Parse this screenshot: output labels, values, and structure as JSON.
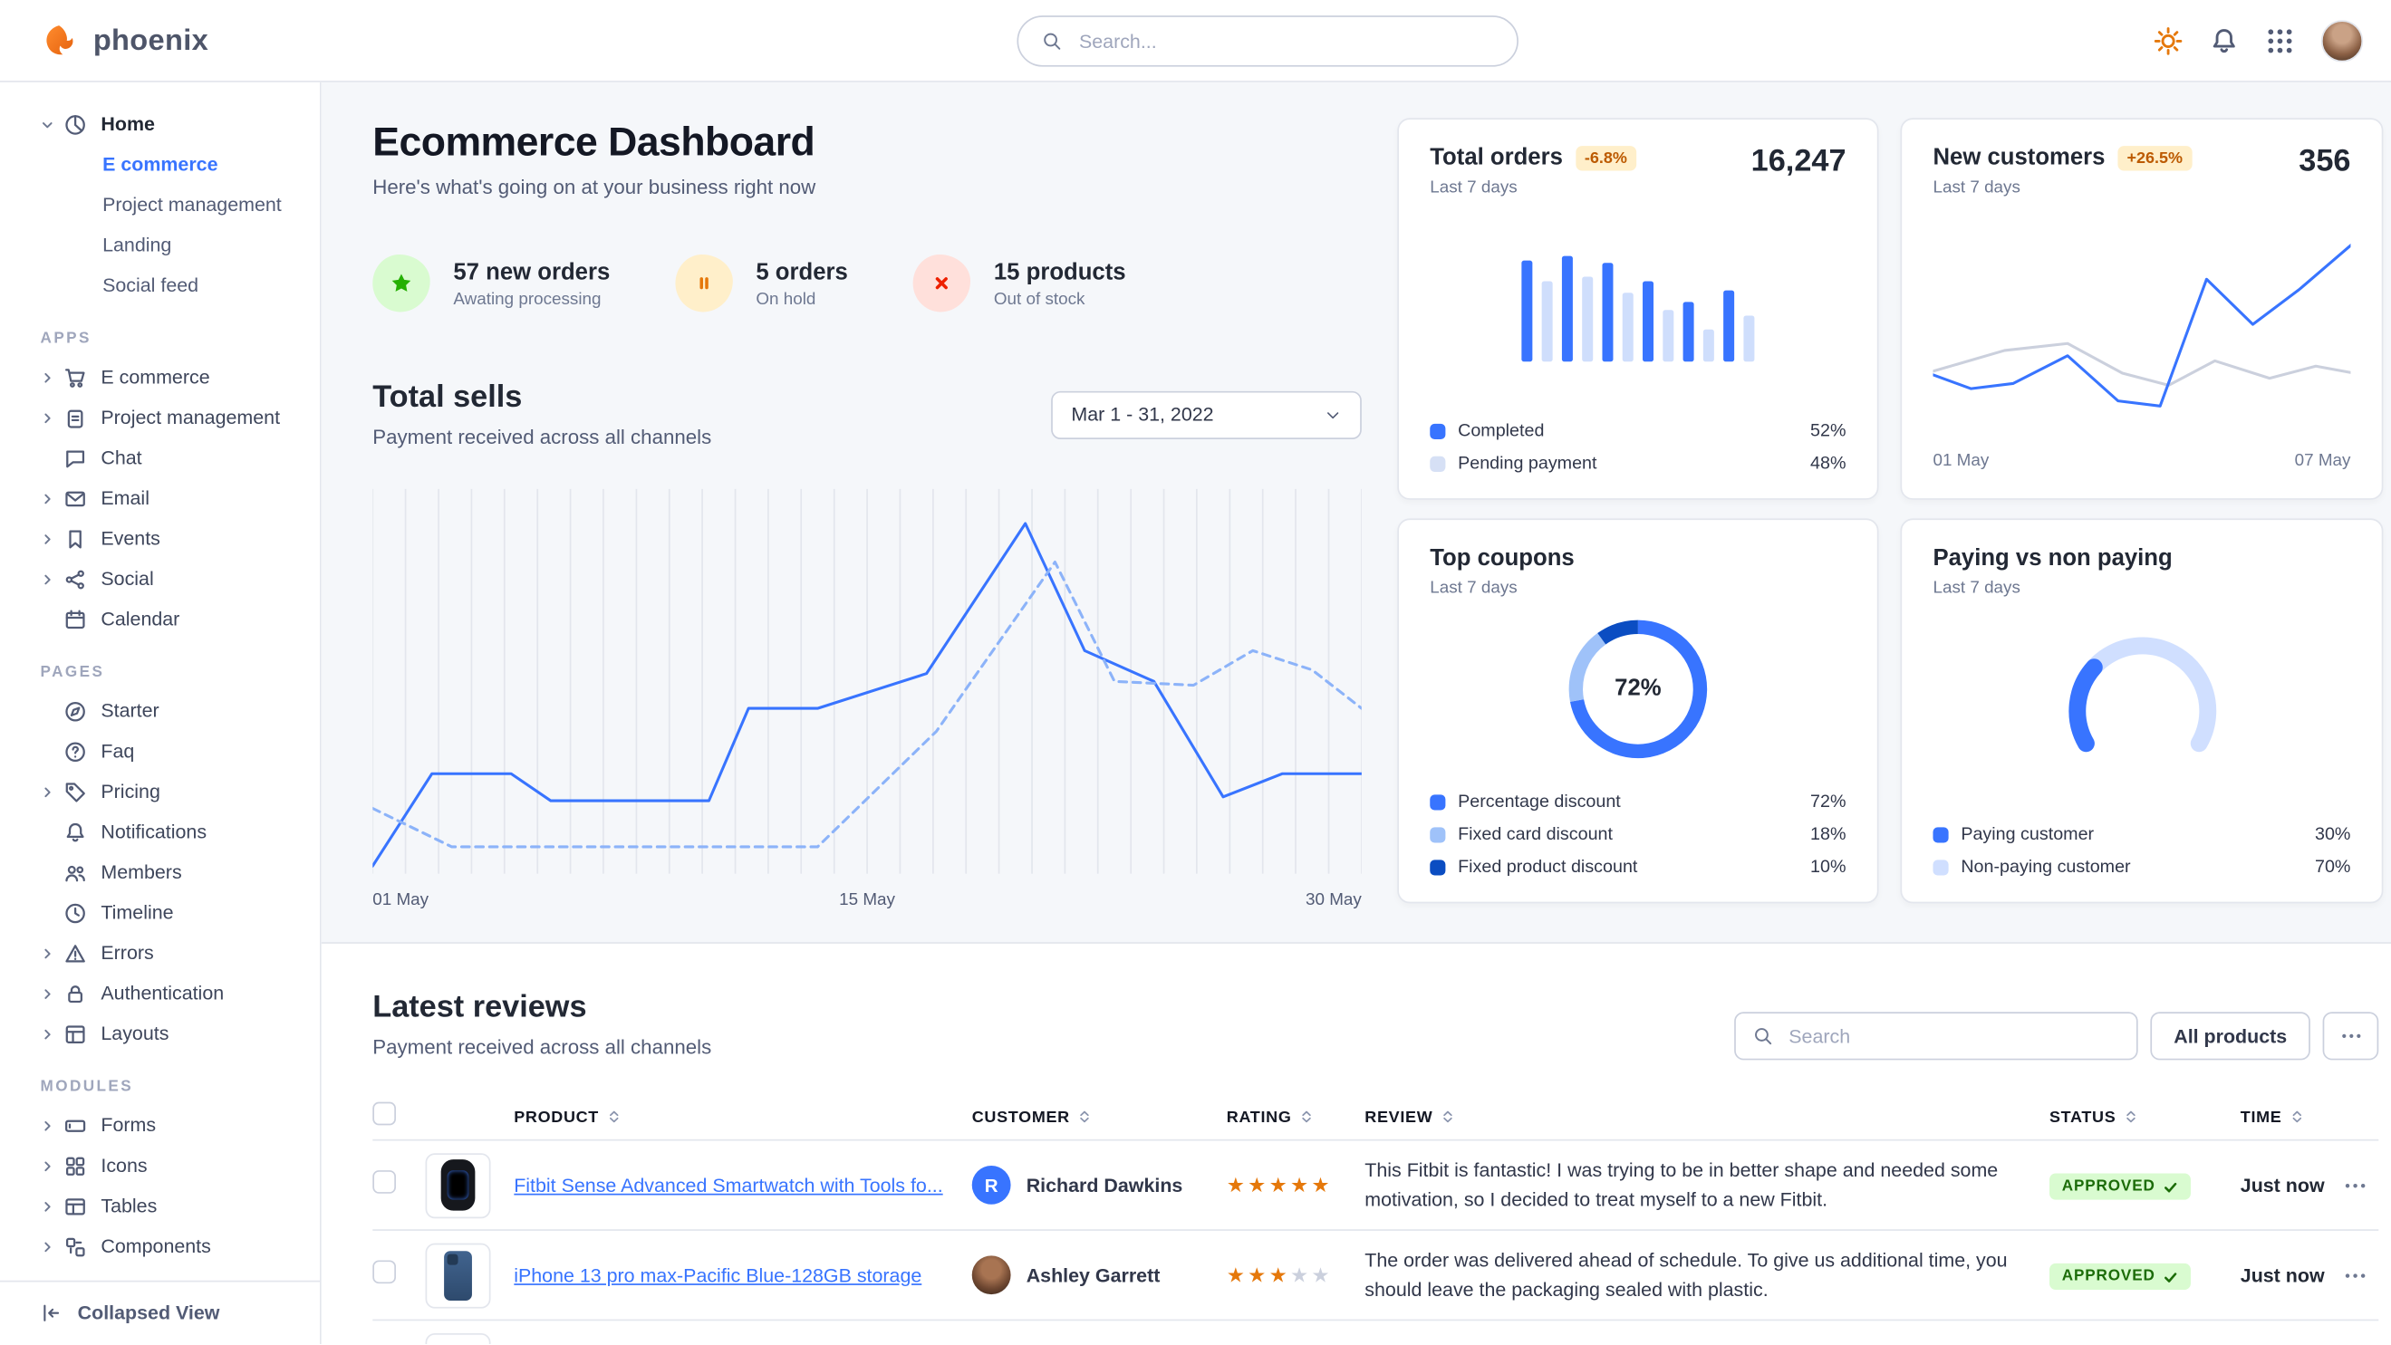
{
  "colors": {
    "primary": "#3874ff",
    "warning_badge_bg": "#ffefca",
    "warning_badge_text": "#bc5a01",
    "success_badge_bg": "#d9fbd0",
    "success_badge_text": "#1c6c09",
    "star": "#e5780b",
    "border": "#e3e6ed"
  },
  "topbar": {
    "brand": "phoenix",
    "search_placeholder": "Search..."
  },
  "sidebar": {
    "home": {
      "label": "Home",
      "children": [
        {
          "label": "E commerce"
        },
        {
          "label": "Project management"
        },
        {
          "label": "Landing"
        },
        {
          "label": "Social feed"
        }
      ]
    },
    "sections": [
      {
        "title": "APPS",
        "items": [
          {
            "label": "E commerce",
            "icon": "cart",
            "caret": true
          },
          {
            "label": "Project management",
            "icon": "clipboard",
            "caret": true
          },
          {
            "label": "Chat",
            "icon": "chat",
            "caret": false
          },
          {
            "label": "Email",
            "icon": "envelope",
            "caret": true
          },
          {
            "label": "Events",
            "icon": "bookmark",
            "caret": true
          },
          {
            "label": "Social",
            "icon": "share",
            "caret": true
          },
          {
            "label": "Calendar",
            "icon": "calendar",
            "caret": false
          }
        ]
      },
      {
        "title": "PAGES",
        "items": [
          {
            "label": "Starter",
            "icon": "compass",
            "caret": false
          },
          {
            "label": "Faq",
            "icon": "question",
            "caret": false
          },
          {
            "label": "Pricing",
            "icon": "tag",
            "caret": true
          },
          {
            "label": "Notifications",
            "icon": "bell",
            "caret": false
          },
          {
            "label": "Members",
            "icon": "users",
            "caret": false
          },
          {
            "label": "Timeline",
            "icon": "clock",
            "caret": false
          },
          {
            "label": "Errors",
            "icon": "warning",
            "caret": true
          },
          {
            "label": "Authentication",
            "icon": "lock",
            "caret": true
          },
          {
            "label": "Layouts",
            "icon": "layout",
            "caret": true
          }
        ]
      },
      {
        "title": "MODULES",
        "items": [
          {
            "label": "Forms",
            "icon": "form",
            "caret": true
          },
          {
            "label": "Icons",
            "icon": "icons",
            "caret": true
          },
          {
            "label": "Tables",
            "icon": "table",
            "caret": true
          },
          {
            "label": "Components",
            "icon": "components",
            "caret": true
          }
        ]
      }
    ],
    "footer": {
      "label": "Collapsed View"
    }
  },
  "page_header": {
    "title": "Ecommerce Dashboard",
    "subtitle": "Here's what's going on at your business right now"
  },
  "stats": [
    {
      "value": "57 new orders",
      "caption": "Awating processing",
      "icon": "star",
      "accent": "#25b003",
      "bg": "#d9fbd0"
    },
    {
      "value": "5 orders",
      "caption": "On hold",
      "icon": "pause",
      "accent": "#e5780b",
      "bg": "#ffefca"
    },
    {
      "value": "15 products",
      "caption": "Out of stock",
      "icon": "x",
      "accent": "#ed2000",
      "bg": "#ffe0db"
    }
  ],
  "total_sells": {
    "title": "Total sells",
    "subtitle": "Payment received across all channels",
    "date_range": "Mar 1 - 31, 2022",
    "x_labels": [
      "01 May",
      "15 May",
      "30 May"
    ]
  },
  "cards": {
    "total_orders": {
      "title": "Total orders",
      "badge": "-6.8%",
      "value": "16,247",
      "period": "Last 7 days",
      "legend": [
        {
          "label": "Completed",
          "value": "52%",
          "color": "#3874ff"
        },
        {
          "label": "Pending payment",
          "value": "48%",
          "color": "#d6e0f5"
        }
      ]
    },
    "new_customers": {
      "title": "New customers",
      "badge": "+26.5%",
      "value": "356",
      "period": "Last 7 days",
      "x_labels": [
        "01 May",
        "07 May"
      ]
    },
    "top_coupons": {
      "title": "Top coupons",
      "period": "Last 7 days",
      "center_label": "72%",
      "legend": [
        {
          "label": "Percentage discount",
          "value": "72%",
          "color": "#3874ff"
        },
        {
          "label": "Fixed card discount",
          "value": "18%",
          "color": "#9fc2f9"
        },
        {
          "label": "Fixed product discount",
          "value": "10%",
          "color": "#0b4dc2"
        }
      ]
    },
    "paying": {
      "title": "Paying vs non paying",
      "period": "Last 7 days",
      "legend": [
        {
          "label": "Paying customer",
          "value": "30%",
          "color": "#3874ff"
        },
        {
          "label": "Non-paying customer",
          "value": "70%",
          "color": "#d0dfff"
        }
      ]
    }
  },
  "reviews": {
    "title": "Latest reviews",
    "subtitle": "Payment received across all channels",
    "search_placeholder": "Search",
    "filter_label": "All products",
    "columns": [
      "PRODUCT",
      "CUSTOMER",
      "RATING",
      "REVIEW",
      "STATUS",
      "TIME"
    ],
    "rows": [
      {
        "product": "Fitbit Sense Advanced Smartwatch with Tools fo...",
        "customer": "Richard Dawkins",
        "avatar": {
          "type": "initial",
          "text": "R"
        },
        "rating": 5,
        "review": "This Fitbit is fantastic! I was trying to be in better shape and needed some motivation, so I decided to treat myself to a new Fitbit.",
        "status": "APPROVED",
        "time": "Just now",
        "thumb": "watch"
      },
      {
        "product": "iPhone 13 pro max-Pacific Blue-128GB storage",
        "customer": "Ashley Garrett",
        "avatar": {
          "type": "photo"
        },
        "rating": 3,
        "review": "The order was delivered ahead of schedule. To give us additional time, you should leave the packaging sealed with plastic.",
        "status": "APPROVED",
        "time": "Just now",
        "thumb": "phone"
      }
    ]
  },
  "chart_data": [
    {
      "id": "total-sells",
      "type": "line",
      "title": "Total sells",
      "x_labels": [
        "01 May",
        "15 May",
        "30 May"
      ],
      "grid": "vertical",
      "series": [
        {
          "name": "series-1",
          "style": "solid",
          "color": "#3874ff",
          "points": [
            [
              0,
              98
            ],
            [
              6,
              74
            ],
            [
              14,
              74
            ],
            [
              18,
              81
            ],
            [
              34,
              81
            ],
            [
              38,
              57
            ],
            [
              45,
              57
            ],
            [
              56,
              48
            ],
            [
              66,
              9
            ],
            [
              72,
              42
            ],
            [
              79,
              50
            ],
            [
              86,
              80
            ],
            [
              92,
              74
            ],
            [
              100,
              74
            ]
          ]
        },
        {
          "name": "series-2",
          "style": "dashed",
          "color": "#8cb3f9",
          "points": [
            [
              0,
              83
            ],
            [
              8,
              93
            ],
            [
              45,
              93
            ],
            [
              57,
              63
            ],
            [
              69,
              19
            ],
            [
              75,
              50
            ],
            [
              83,
              51
            ],
            [
              89,
              42
            ],
            [
              95,
              47
            ],
            [
              100,
              57
            ]
          ]
        }
      ]
    },
    {
      "id": "total-orders-bars",
      "type": "bar",
      "bar_colors": [
        "#3874ff",
        "#cfdefc"
      ],
      "series": [
        {
          "name": "orders",
          "values": [
            88,
            70,
            92,
            74,
            86,
            60,
            70,
            45,
            52,
            28,
            62,
            40
          ]
        }
      ]
    },
    {
      "id": "new-customers",
      "type": "line",
      "x_labels": [
        "01 May",
        "07 May"
      ],
      "series": [
        {
          "name": "previous",
          "style": "solid",
          "color": "#cbd0dd",
          "points": [
            [
              0,
              77
            ],
            [
              17,
              65
            ],
            [
              32,
              61
            ],
            [
              45,
              78
            ],
            [
              56,
              85
            ],
            [
              67,
              71
            ],
            [
              80,
              81
            ],
            [
              91,
              74
            ],
            [
              100,
              78
            ]
          ]
        },
        {
          "name": "current",
          "style": "solid",
          "color": "#3874ff",
          "points": [
            [
              0,
              79
            ],
            [
              9,
              87
            ],
            [
              19,
              84
            ],
            [
              32,
              68
            ],
            [
              44,
              94
            ],
            [
              54,
              97
            ],
            [
              65,
              24
            ],
            [
              76,
              50
            ],
            [
              87,
              30
            ],
            [
              100,
              3
            ]
          ]
        }
      ]
    },
    {
      "id": "top-coupons",
      "type": "donut",
      "center_label": "72%",
      "slices": [
        {
          "label": "Percentage discount",
          "value": 72,
          "color": "#3874ff"
        },
        {
          "label": "Fixed card discount",
          "value": 18,
          "color": "#9fc2f9"
        },
        {
          "label": "Fixed product discount",
          "value": 10,
          "color": "#0b4dc2"
        }
      ]
    },
    {
      "id": "paying-gauge",
      "type": "gauge",
      "slices": [
        {
          "label": "Paying customer",
          "value": 30,
          "color": "#3874ff"
        },
        {
          "label": "Non-paying customer",
          "value": 70,
          "color": "#d0dfff"
        }
      ]
    }
  ]
}
